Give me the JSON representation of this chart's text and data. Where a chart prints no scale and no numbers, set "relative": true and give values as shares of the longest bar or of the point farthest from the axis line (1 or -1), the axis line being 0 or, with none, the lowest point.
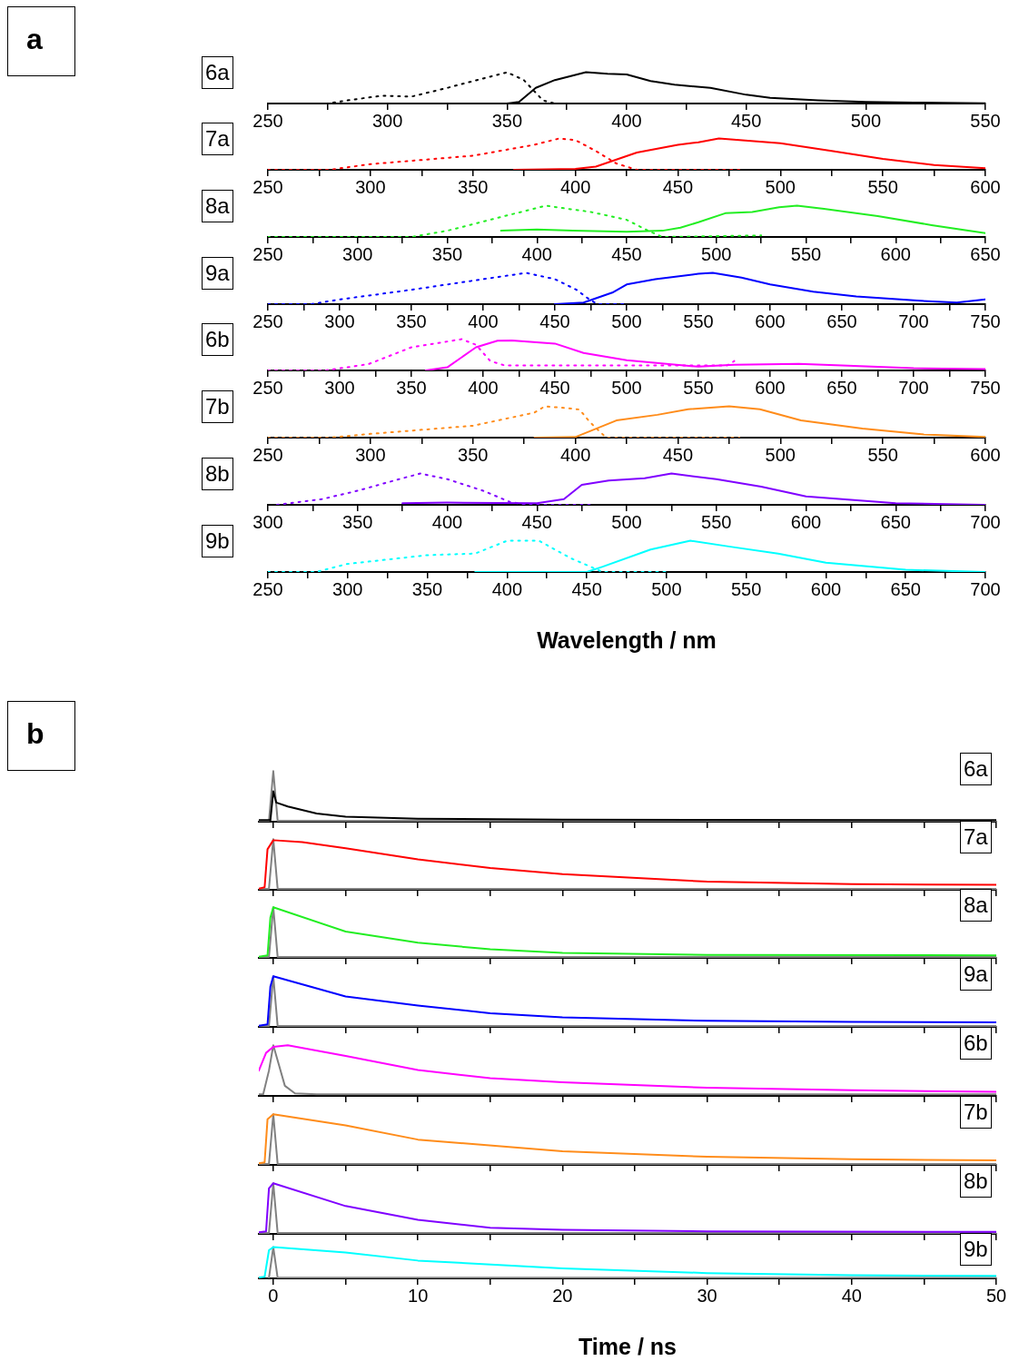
{
  "chart_data": [
    {
      "type": "line",
      "title": "6a",
      "annotations": [
        "a"
      ],
      "relative": true,
      "xlim": [
        250,
        550
      ],
      "xticks": [
        250,
        {
          "value": 275,
          "label": null
        },
        300,
        {
          "value": 325,
          "label": null
        },
        350,
        {
          "value": 375,
          "label": null
        },
        400,
        {
          "value": 425,
          "label": null
        },
        450,
        {
          "value": 475,
          "label": null
        },
        500,
        {
          "value": 525,
          "label": null
        },
        550
      ],
      "series": [
        {
          "color": "#000000",
          "line_style": "dotted",
          "x": [
            250,
            275,
            285,
            298,
            310,
            325,
            340,
            350,
            357,
            365,
            370,
            400
          ],
          "values": [
            0,
            0,
            0.12,
            0.25,
            0.22,
            0.5,
            0.8,
            1,
            0.75,
            0.1,
            0,
            0
          ]
        },
        {
          "color": "#000000",
          "x": [
            350,
            355,
            362,
            370,
            383,
            392,
            400,
            410,
            420,
            435,
            450,
            460,
            480,
            500,
            520,
            550
          ],
          "values": [
            0,
            0.05,
            0.5,
            0.75,
            1,
            0.95,
            0.93,
            0.72,
            0.6,
            0.5,
            0.28,
            0.18,
            0.1,
            0.05,
            0.03,
            0.01
          ]
        }
      ]
    },
    {
      "type": "line",
      "title": "7a",
      "relative": true,
      "xlim": [
        250,
        600
      ],
      "xticks": [
        250,
        {
          "value": 275,
          "label": null
        },
        300,
        {
          "value": 325,
          "label": null
        },
        350,
        {
          "value": 375,
          "label": null
        },
        400,
        {
          "value": 425,
          "label": null
        },
        450,
        {
          "value": 475,
          "label": null
        },
        500,
        {
          "value": 525,
          "label": null
        },
        550,
        {
          "value": 575,
          "label": null
        },
        600
      ],
      "series": [
        {
          "color": "#ff0000",
          "line_style": "dotted",
          "x": [
            250,
            280,
            300,
            350,
            380,
            392,
            400,
            410,
            420,
            430,
            480
          ],
          "values": [
            0,
            0,
            0.18,
            0.45,
            0.8,
            1,
            0.95,
            0.6,
            0.2,
            0,
            0
          ]
        },
        {
          "color": "#ff0000",
          "x": [
            370,
            400,
            410,
            430,
            450,
            460,
            470,
            500,
            525,
            550,
            575,
            600
          ],
          "values": [
            0,
            0.03,
            0.1,
            0.55,
            0.8,
            0.88,
            1,
            0.85,
            0.6,
            0.35,
            0.15,
            0.05
          ]
        }
      ]
    },
    {
      "type": "line",
      "title": "8a",
      "relative": true,
      "xlim": [
        250,
        650
      ],
      "xticks": [
        250,
        {
          "value": 275,
          "label": null
        },
        300,
        {
          "value": 325,
          "label": null
        },
        350,
        {
          "value": 375,
          "label": null
        },
        400,
        {
          "value": 425,
          "label": null
        },
        450,
        {
          "value": 475,
          "label": null
        },
        500,
        {
          "value": 525,
          "label": null
        },
        550,
        {
          "value": 575,
          "label": null
        },
        600,
        {
          "value": 625,
          "label": null
        },
        650
      ],
      "series": [
        {
          "color": "#22ee22",
          "line_style": "dotted",
          "x": [
            250,
            330,
            350,
            380,
            405,
            430,
            450,
            462,
            470,
            525
          ],
          "values": [
            0,
            0,
            0.2,
            0.64,
            1,
            0.8,
            0.55,
            0.2,
            0,
            0.05
          ]
        },
        {
          "color": "#22ee22",
          "x": [
            380,
            400,
            420,
            450,
            470,
            480,
            490,
            505,
            520,
            535,
            545,
            560,
            590,
            620,
            650
          ],
          "values": [
            0.2,
            0.24,
            0.2,
            0.17,
            0.2,
            0.3,
            0.47,
            0.76,
            0.8,
            0.95,
            1,
            0.9,
            0.67,
            0.38,
            0.12
          ]
        }
      ]
    },
    {
      "type": "line",
      "title": "9a",
      "relative": true,
      "xlim": [
        250,
        750
      ],
      "xticks": [
        250,
        {
          "value": 275,
          "label": null
        },
        300,
        {
          "value": 325,
          "label": null
        },
        350,
        {
          "value": 375,
          "label": null
        },
        400,
        {
          "value": 425,
          "label": null
        },
        450,
        {
          "value": 475,
          "label": null
        },
        500,
        {
          "value": 525,
          "label": null
        },
        550,
        {
          "value": 575,
          "label": null
        },
        600,
        {
          "value": 625,
          "label": null
        },
        650,
        {
          "value": 675,
          "label": null
        },
        700,
        {
          "value": 725,
          "label": null
        },
        750
      ],
      "series": [
        {
          "color": "#0000ff",
          "line_style": "dotted",
          "x": [
            250,
            280,
            300,
            350,
            400,
            430,
            450,
            465,
            475,
            480,
            500
          ],
          "values": [
            0,
            0,
            0.15,
            0.46,
            0.8,
            1,
            0.8,
            0.46,
            0.12,
            0,
            0
          ]
        },
        {
          "color": "#0000ff",
          "x": [
            450,
            470,
            490,
            500,
            520,
            550,
            560,
            580,
            600,
            630,
            660,
            700,
            730,
            750
          ],
          "values": [
            0,
            0.05,
            0.37,
            0.63,
            0.8,
            0.97,
            1,
            0.85,
            0.63,
            0.4,
            0.25,
            0.12,
            0.05,
            0.15
          ]
        }
      ]
    },
    {
      "type": "line",
      "title": "6b",
      "relative": true,
      "xlim": [
        250,
        750
      ],
      "xticks": [
        250,
        {
          "value": 275,
          "label": null
        },
        300,
        {
          "value": 325,
          "label": null
        },
        350,
        {
          "value": 375,
          "label": null
        },
        400,
        {
          "value": 425,
          "label": null
        },
        450,
        {
          "value": 475,
          "label": null
        },
        500,
        {
          "value": 525,
          "label": null
        },
        550,
        {
          "value": 575,
          "label": null
        },
        600,
        {
          "value": 625,
          "label": null
        },
        650,
        {
          "value": 675,
          "label": null
        },
        700,
        {
          "value": 725,
          "label": null
        },
        750
      ],
      "series": [
        {
          "color": "#ff00ff",
          "line_style": "dotted",
          "x": [
            250,
            290,
            320,
            350,
            385,
            395,
            405,
            415,
            570,
            575
          ],
          "values": [
            0,
            0,
            0.2,
            0.74,
            1,
            0.82,
            0.3,
            0.16,
            0.16,
            0.3
          ]
        },
        {
          "color": "#ff00ff",
          "x": [
            360,
            375,
            395,
            410,
            420,
            450,
            470,
            500,
            550,
            575,
            620,
            650,
            700,
            750
          ],
          "values": [
            0,
            0.1,
            0.74,
            0.95,
            0.96,
            0.86,
            0.56,
            0.33,
            0.12,
            0.18,
            0.21,
            0.16,
            0.07,
            0.04
          ]
        }
      ]
    },
    {
      "type": "line",
      "title": "7b",
      "relative": true,
      "xlim": [
        250,
        600
      ],
      "xticks": [
        250,
        {
          "value": 275,
          "label": null
        },
        300,
        {
          "value": 325,
          "label": null
        },
        350,
        {
          "value": 375,
          "label": null
        },
        400,
        {
          "value": 425,
          "label": null
        },
        450,
        {
          "value": 475,
          "label": null
        },
        500,
        {
          "value": 525,
          "label": null
        },
        550,
        {
          "value": 575,
          "label": null
        },
        600
      ],
      "series": [
        {
          "color": "#ff8c1a",
          "line_style": "dotted",
          "x": [
            250,
            280,
            300,
            350,
            380,
            385,
            395,
            402,
            407,
            415,
            480
          ],
          "values": [
            0,
            0,
            0.12,
            0.38,
            0.8,
            1,
            0.95,
            0.9,
            0.5,
            0,
            0
          ]
        },
        {
          "color": "#ff8c1a",
          "x": [
            380,
            400,
            420,
            440,
            455,
            475,
            490,
            510,
            540,
            570,
            600
          ],
          "values": [
            0,
            0.02,
            0.55,
            0.73,
            0.91,
            1,
            0.91,
            0.55,
            0.29,
            0.1,
            0.02
          ]
        }
      ]
    },
    {
      "type": "line",
      "title": "8b",
      "relative": true,
      "xlim": [
        300,
        700
      ],
      "xticks": [
        300,
        {
          "value": 325,
          "label": null
        },
        350,
        {
          "value": 375,
          "label": null
        },
        400,
        {
          "value": 425,
          "label": null
        },
        450,
        {
          "value": 475,
          "label": null
        },
        500,
        {
          "value": 525,
          "label": null
        },
        550,
        {
          "value": 575,
          "label": null
        },
        600,
        {
          "value": 625,
          "label": null
        },
        650,
        {
          "value": 675,
          "label": null
        },
        700
      ],
      "series": [
        {
          "color": "#8000ff",
          "line_style": "dotted",
          "x": [
            305,
            330,
            350,
            375,
            385,
            400,
            420,
            435,
            445,
            480
          ],
          "values": [
            0,
            0.18,
            0.45,
            0.85,
            1,
            0.82,
            0.45,
            0.09,
            0,
            0
          ]
        },
        {
          "color": "#8000ff",
          "x": [
            375,
            400,
            450,
            465,
            475,
            490,
            510,
            525,
            550,
            575,
            600,
            650,
            700
          ],
          "values": [
            0.05,
            0.07,
            0.05,
            0.18,
            0.64,
            0.78,
            0.85,
            1,
            0.82,
            0.58,
            0.27,
            0.05,
            0
          ]
        }
      ]
    },
    {
      "type": "line",
      "title": "9b",
      "xlabel": "Wavelength / nm",
      "relative": true,
      "xlim": [
        250,
        700
      ],
      "xticks": [
        250,
        {
          "value": 275,
          "label": null
        },
        300,
        {
          "value": 325,
          "label": null
        },
        350,
        {
          "value": 375,
          "label": null
        },
        400,
        {
          "value": 425,
          "label": null
        },
        450,
        {
          "value": 475,
          "label": null
        },
        500,
        {
          "value": 525,
          "label": null
        },
        550,
        {
          "value": 575,
          "label": null
        },
        600,
        {
          "value": 625,
          "label": null
        },
        650,
        {
          "value": 675,
          "label": null
        },
        700
      ],
      "series": [
        {
          "color": "#00ffff",
          "line_style": "dotted",
          "x": [
            250,
            280,
            300,
            350,
            380,
            400,
            420,
            440,
            460,
            500
          ],
          "values": [
            0,
            0,
            0.26,
            0.54,
            0.59,
            1,
            1,
            0.44,
            0,
            0
          ]
        },
        {
          "color": "#00ffff",
          "x": [
            380,
            450,
            460,
            490,
            515,
            540,
            570,
            600,
            650,
            700
          ],
          "values": [
            0,
            0,
            0.17,
            0.72,
            1,
            0.81,
            0.59,
            0.3,
            0.07,
            0
          ]
        }
      ]
    },
    {
      "type": "line",
      "title": "6a",
      "annotations": [
        "b"
      ],
      "relative": true,
      "tick_labels": false,
      "xlim": [
        -1,
        50
      ],
      "xticks": [
        0,
        {
          "value": 5,
          "label": null
        },
        10,
        {
          "value": 15,
          "label": null
        },
        20,
        {
          "value": 25,
          "label": null
        },
        30,
        {
          "value": 35,
          "label": null
        },
        40,
        {
          "value": 45,
          "label": null
        },
        50
      ],
      "series": [
        {
          "color": "#000000",
          "x": [
            -1,
            -0.2,
            0,
            0.2,
            1,
            3,
            5,
            10,
            20,
            50
          ],
          "values": [
            0.03,
            0.03,
            0.6,
            0.38,
            0.3,
            0.16,
            0.1,
            0.06,
            0.04,
            0.03
          ]
        },
        {
          "color": "#808080",
          "x": [
            -1,
            -0.3,
            0,
            0.3,
            50
          ],
          "values": [
            0.02,
            0.02,
            1,
            0.02,
            0.02
          ]
        }
      ]
    },
    {
      "type": "line",
      "title": "7a",
      "relative": true,
      "tick_labels": false,
      "xlim": [
        -1,
        50
      ],
      "xticks": [
        0,
        {
          "value": 5,
          "label": null
        },
        10,
        {
          "value": 15,
          "label": null
        },
        20,
        {
          "value": 25,
          "label": null
        },
        30,
        {
          "value": 35,
          "label": null
        },
        40,
        {
          "value": 45,
          "label": null
        },
        50
      ],
      "series": [
        {
          "color": "#ff0000",
          "x": [
            -1,
            -0.6,
            -0.4,
            0,
            2,
            5,
            10,
            15,
            20,
            30,
            40,
            50
          ],
          "values": [
            0.02,
            0.05,
            0.8,
            0.98,
            0.94,
            0.82,
            0.6,
            0.43,
            0.31,
            0.16,
            0.11,
            0.1
          ]
        },
        {
          "color": "#808080",
          "x": [
            -1,
            -0.3,
            0,
            0.3,
            50
          ],
          "values": [
            0.02,
            0.02,
            1,
            0.02,
            0.02
          ]
        }
      ]
    },
    {
      "type": "line",
      "title": "8a",
      "relative": true,
      "tick_labels": false,
      "xlim": [
        -1,
        50
      ],
      "xticks": [
        0,
        {
          "value": 5,
          "label": null
        },
        10,
        {
          "value": 15,
          "label": null
        },
        20,
        {
          "value": 25,
          "label": null
        },
        30,
        {
          "value": 35,
          "label": null
        },
        40,
        {
          "value": 45,
          "label": null
        },
        50
      ],
      "series": [
        {
          "color": "#22ee22",
          "x": [
            -1,
            -0.4,
            -0.2,
            0,
            5,
            10,
            15,
            20,
            30,
            50
          ],
          "values": [
            0.02,
            0.05,
            0.8,
            1,
            0.52,
            0.3,
            0.17,
            0.1,
            0.06,
            0.05
          ]
        },
        {
          "color": "#808080",
          "x": [
            -1,
            -0.3,
            0,
            0.3,
            50
          ],
          "values": [
            0.02,
            0.02,
            1,
            0.02,
            0.02
          ]
        }
      ]
    },
    {
      "type": "line",
      "title": "9a",
      "relative": true,
      "tick_labels": false,
      "xlim": [
        -1,
        50
      ],
      "xticks": [
        0,
        {
          "value": 5,
          "label": null
        },
        10,
        {
          "value": 15,
          "label": null
        },
        20,
        {
          "value": 25,
          "label": null
        },
        30,
        {
          "value": 35,
          "label": null
        },
        40,
        {
          "value": 45,
          "label": null
        },
        50
      ],
      "series": [
        {
          "color": "#0000ff",
          "x": [
            -1,
            -0.4,
            -0.2,
            0,
            5,
            10,
            15,
            20,
            30,
            40,
            50
          ],
          "values": [
            0.02,
            0.05,
            0.8,
            1,
            0.6,
            0.42,
            0.27,
            0.19,
            0.12,
            0.1,
            0.09
          ]
        },
        {
          "color": "#808080",
          "x": [
            -1,
            -0.3,
            0,
            0.3,
            50
          ],
          "values": [
            0.02,
            0.02,
            1,
            0.02,
            0.02
          ]
        }
      ]
    },
    {
      "type": "line",
      "title": "6b",
      "relative": true,
      "tick_labels": false,
      "xlim": [
        -1,
        50
      ],
      "xticks": [
        0,
        {
          "value": 5,
          "label": null
        },
        10,
        {
          "value": 15,
          "label": null
        },
        20,
        {
          "value": 25,
          "label": null
        },
        30,
        {
          "value": 35,
          "label": null
        },
        40,
        {
          "value": 45,
          "label": null
        },
        50
      ],
      "series": [
        {
          "color": "#ff00ff",
          "x": [
            -1,
            -0.5,
            0,
            1,
            5,
            10,
            15,
            20,
            30,
            40,
            50
          ],
          "values": [
            0.5,
            0.85,
            0.97,
            1,
            0.79,
            0.51,
            0.35,
            0.27,
            0.16,
            0.11,
            0.08
          ]
        },
        {
          "color": "#808080",
          "x": [
            -1,
            -0.7,
            -0.3,
            0,
            0.4,
            0.8,
            1.5,
            3,
            50
          ],
          "values": [
            0.03,
            0.03,
            0.5,
            1,
            0.6,
            0.2,
            0.05,
            0.03,
            0.03
          ]
        }
      ]
    },
    {
      "type": "line",
      "title": "7b",
      "relative": true,
      "tick_labels": false,
      "xlim": [
        -1,
        50
      ],
      "xticks": [
        0,
        {
          "value": 5,
          "label": null
        },
        10,
        {
          "value": 15,
          "label": null
        },
        20,
        {
          "value": 25,
          "label": null
        },
        30,
        {
          "value": 35,
          "label": null
        },
        40,
        {
          "value": 45,
          "label": null
        },
        50
      ],
      "series": [
        {
          "color": "#ff8c1a",
          "x": [
            -1,
            -0.6,
            -0.4,
            0,
            5,
            10,
            20,
            30,
            40,
            50
          ],
          "values": [
            0.03,
            0.05,
            0.9,
            1,
            0.78,
            0.5,
            0.27,
            0.16,
            0.11,
            0.09
          ]
        },
        {
          "color": "#808080",
          "x": [
            -1,
            -0.3,
            0,
            0.3,
            50
          ],
          "values": [
            0.02,
            0.02,
            1,
            0.02,
            0.02
          ]
        }
      ]
    },
    {
      "type": "line",
      "title": "8b",
      "relative": true,
      "tick_labels": false,
      "xlim": [
        -1,
        50
      ],
      "xticks": [
        0,
        {
          "value": 5,
          "label": null
        },
        10,
        {
          "value": 15,
          "label": null
        },
        20,
        {
          "value": 25,
          "label": null
        },
        30,
        {
          "value": 35,
          "label": null
        },
        40,
        {
          "value": 45,
          "label": null
        },
        50
      ],
      "series": [
        {
          "color": "#8000ff",
          "x": [
            -1,
            -0.5,
            -0.3,
            0,
            5,
            10,
            15,
            20,
            30,
            50
          ],
          "values": [
            0.03,
            0.05,
            0.9,
            1,
            0.55,
            0.28,
            0.12,
            0.08,
            0.05,
            0.04
          ]
        },
        {
          "color": "#808080",
          "x": [
            -1,
            -0.3,
            0,
            0.3,
            50
          ],
          "values": [
            0.02,
            0.02,
            1,
            0.02,
            0.02
          ]
        }
      ]
    },
    {
      "type": "line",
      "title": "9b",
      "xlabel": "Time / ns",
      "relative": true,
      "xlim": [
        -1,
        50
      ],
      "xticks": [
        0,
        {
          "value": 5,
          "label": null
        },
        10,
        {
          "value": 15,
          "label": null
        },
        20,
        {
          "value": 25,
          "label": null
        },
        30,
        {
          "value": 35,
          "label": null
        },
        40,
        {
          "value": 45,
          "label": null
        },
        50
      ],
      "series": [
        {
          "color": "#00ffff",
          "x": [
            -1,
            -0.6,
            -0.3,
            0,
            5,
            10,
            20,
            30,
            40,
            50
          ],
          "values": [
            0.03,
            0.05,
            0.9,
            1,
            0.83,
            0.57,
            0.32,
            0.17,
            0.1,
            0.08
          ]
        },
        {
          "color": "#808080",
          "x": [
            -0.3,
            0,
            0.3,
            50
          ],
          "values": [
            0.02,
            1,
            0.02,
            0.02
          ]
        }
      ]
    }
  ]
}
